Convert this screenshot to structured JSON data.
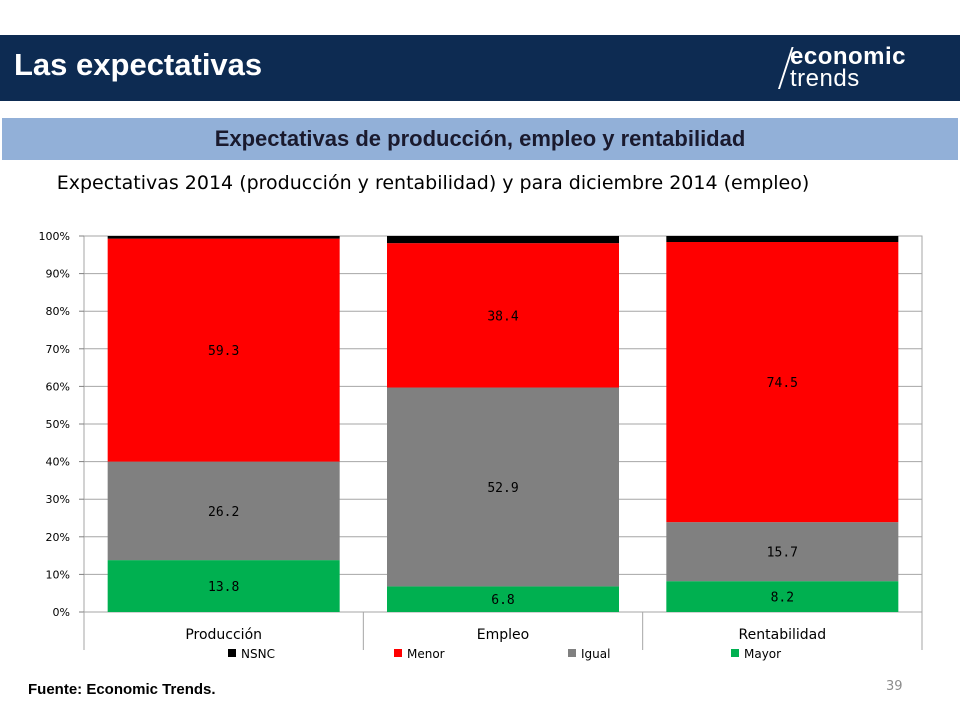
{
  "header": {
    "title": "Las expectativas",
    "logo_line1": "economic",
    "logo_line2": "trends"
  },
  "subtitle": "Expectativas de producción, empleo y rentabilidad",
  "footer": {
    "source": "Fuente: Economic Trends.",
    "page_number": "39"
  },
  "chart_data": {
    "type": "bar",
    "stacked": true,
    "title": "Expectativas 2014 (producción y rentabilidad) y para diciembre 2014 (empleo)",
    "categories": [
      "Producción",
      "Empleo",
      "Rentabilidad"
    ],
    "ylim": [
      0,
      100
    ],
    "y_ticks": [
      "0%",
      "10%",
      "20%",
      "30%",
      "40%",
      "50%",
      "60%",
      "70%",
      "80%",
      "90%",
      "100%"
    ],
    "grid": true,
    "legend_position": "bottom",
    "series": [
      {
        "name": "Mayor",
        "color": "#00b050",
        "values": [
          13.8,
          6.8,
          8.2
        ],
        "labels": [
          "13.8",
          "6.8",
          "8.2"
        ]
      },
      {
        "name": "Igual",
        "color": "#808080",
        "values": [
          26.2,
          52.9,
          15.7
        ],
        "labels": [
          "26.2",
          "52.9",
          "15.7"
        ]
      },
      {
        "name": "Menor",
        "color": "#ff0000",
        "values": [
          59.3,
          38.4,
          74.5
        ],
        "labels": [
          "59.3",
          "38.4",
          "74.5"
        ]
      },
      {
        "name": "NSNC",
        "color": "#000000",
        "values": [
          0.7,
          1.9,
          1.6
        ]
      }
    ],
    "legend_order": [
      "NSNC",
      "Menor",
      "Igual",
      "Mayor"
    ]
  }
}
